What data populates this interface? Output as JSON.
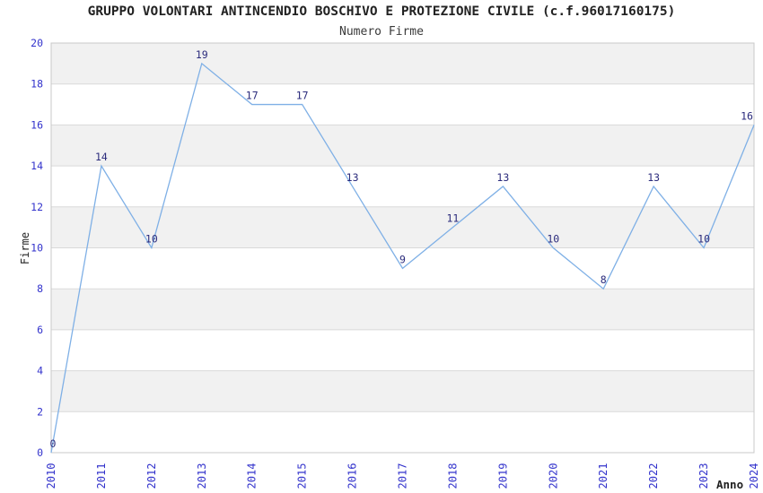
{
  "chart_data": {
    "type": "line",
    "title": "GRUPPO VOLONTARI ANTINCENDIO BOSCHIVO E PROTEZIONE CIVILE (c.f.96017160175)",
    "subtitle": "Numero Firme",
    "categories": [
      "2010",
      "2011",
      "2012",
      "2013",
      "2014",
      "2015",
      "2016",
      "2017",
      "2018",
      "2019",
      "2020",
      "2021",
      "2022",
      "2023",
      "2024"
    ],
    "series": [
      {
        "name": "Numero Firme",
        "values": [
          0,
          14,
          10,
          19,
          17,
          17,
          13,
          9,
          11,
          13,
          10,
          8,
          13,
          10,
          16
        ]
      }
    ],
    "xlabel": "Anno",
    "ylabel": "Firme",
    "ylim": [
      0,
      20
    ],
    "ytick_step": 2,
    "grid": true,
    "banded_background": true,
    "legend_position": "none",
    "point_labels_visible": true,
    "colors": {
      "line": "#7fb0e6",
      "point_label": "#2b2b7c",
      "tick_label": "#3333cc",
      "band_light": "#ffffff",
      "band_dark": "#f1f1f1",
      "gridline": "#dadada",
      "plot_border": "#c9c9c9"
    }
  }
}
